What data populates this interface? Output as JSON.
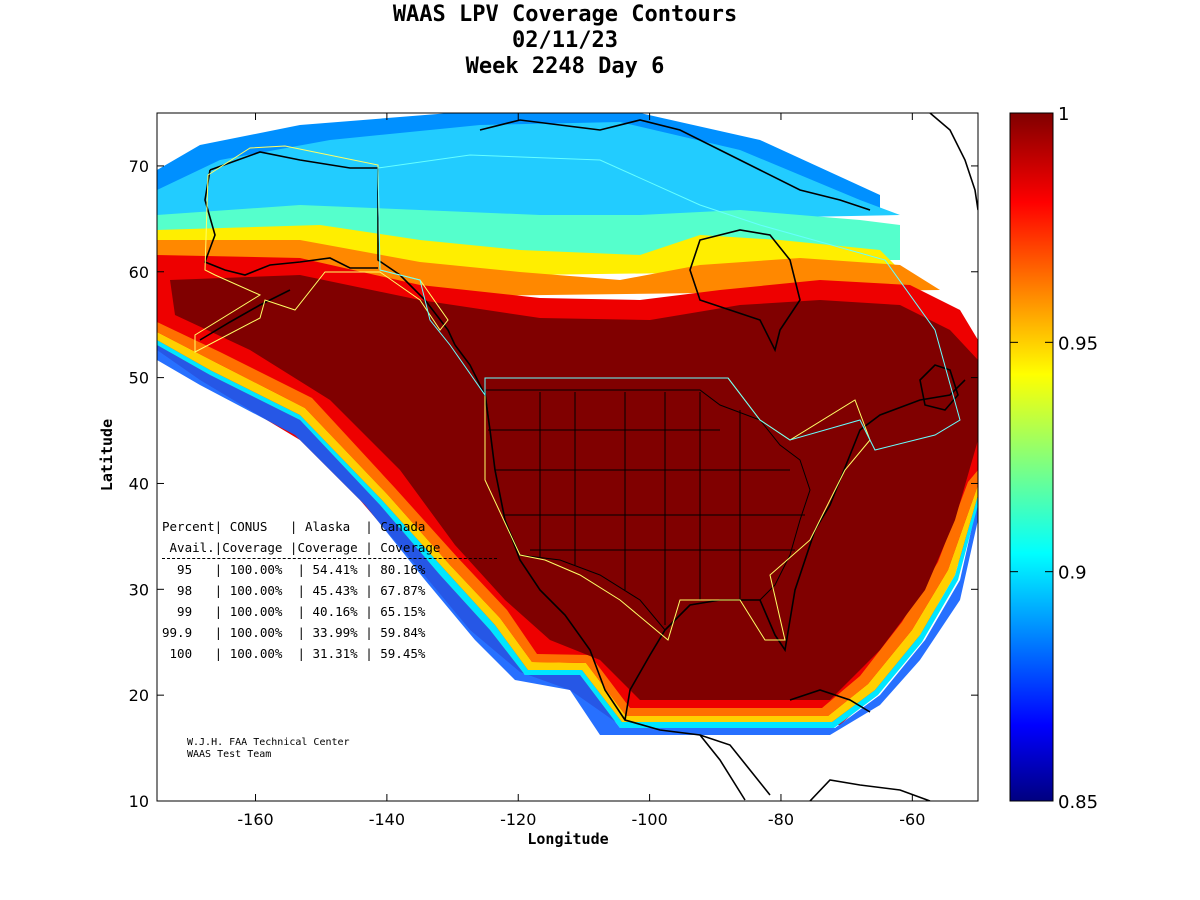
{
  "title": [
    "WAAS LPV Coverage Contours",
    "02/11/23",
    "Week 2248 Day 6"
  ],
  "axes": {
    "xlabel": "Longitude",
    "ylabel": "Latitude",
    "xlim": [
      -175,
      -50
    ],
    "ylim": [
      10,
      75
    ],
    "xticks": [
      -160,
      -140,
      -120,
      -100,
      -80,
      -60
    ],
    "xtick_labels": [
      "-160",
      "-140",
      "-120",
      "-100",
      "-80",
      "-60"
    ],
    "yticks": [
      10,
      20,
      30,
      40,
      50,
      60,
      70
    ],
    "ytick_labels": [
      "10",
      "20",
      "30",
      "40",
      "50",
      "60",
      "70"
    ]
  },
  "colorbar": {
    "range": [
      0.85,
      1.0
    ],
    "ticks": [
      0.85,
      0.9,
      0.95,
      1.0
    ],
    "tick_labels": [
      "0.85",
      "0.9",
      "0.95",
      "1"
    ],
    "colormap": "jet"
  },
  "stats_table": {
    "header1": "Percent| CONUS   | Alaska  | Canada",
    "header2": " Avail.|Coverage |Coverage | Coverage",
    "rows": [
      "  95   | 100.00%  | 54.41% | 80.16%",
      "  98   | 100.00%  | 45.43% | 67.87%",
      "  99   | 100.00%  | 40.16% | 65.15%",
      "99.9   | 100.00%  | 33.99% | 59.84%",
      " 100   | 100.00%  | 31.31% | 59.45%"
    ]
  },
  "credit": [
    "W.J.H. FAA Technical Center",
    "WAAS Test Team"
  ],
  "colors": {
    "full": "#800000",
    "red": "#cc0000",
    "orange": "#ff8000",
    "yellow": "#ffff00",
    "cyan": "#00e0ff",
    "blue": "#0070ff",
    "navy": "#000090"
  }
}
